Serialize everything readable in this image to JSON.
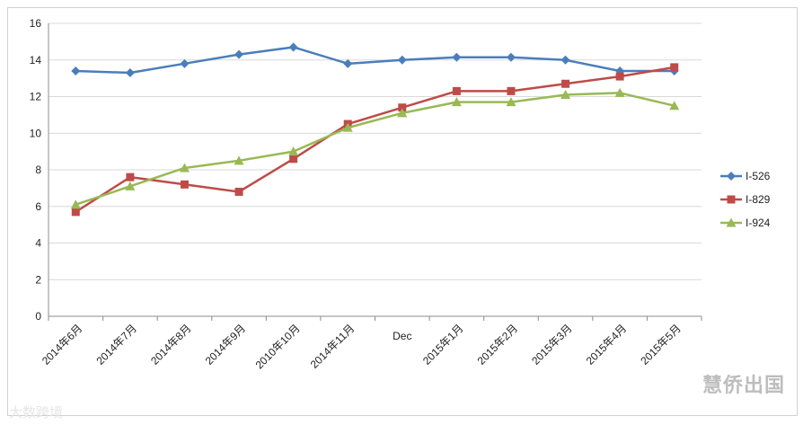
{
  "chart_data": {
    "type": "line",
    "categories": [
      "2014年6月",
      "2014年7月",
      "2014年8月",
      "2014年9月",
      "2010年10月",
      "2014年11月",
      "Dec",
      "2015年1月",
      "2015年2月",
      "2015年3月",
      "2015年4月",
      "2015年5月"
    ],
    "ylim": [
      0,
      16
    ],
    "yticks": [
      0,
      2,
      4,
      6,
      8,
      10,
      12,
      14,
      16
    ],
    "grid": true,
    "legend": "right",
    "series": [
      {
        "name": "I-526",
        "color": "#4a7ebb",
        "marker": "diamond",
        "values": [
          13.4,
          13.3,
          13.8,
          14.3,
          14.7,
          13.8,
          14.0,
          14.15,
          14.15,
          14.0,
          13.4,
          13.4
        ]
      },
      {
        "name": "I-829",
        "color": "#be4b48",
        "marker": "square",
        "values": [
          5.7,
          7.6,
          7.2,
          6.8,
          8.6,
          10.5,
          11.4,
          12.3,
          12.3,
          12.7,
          13.1,
          13.6
        ]
      },
      {
        "name": "I-924",
        "color": "#98b954",
        "marker": "triangle",
        "values": [
          6.1,
          7.1,
          8.1,
          8.5,
          9.0,
          10.3,
          11.1,
          11.7,
          11.7,
          12.1,
          12.2,
          11.5
        ]
      }
    ]
  },
  "watermarks": {
    "right": "慧侨出国",
    "left": "大数跨境"
  }
}
